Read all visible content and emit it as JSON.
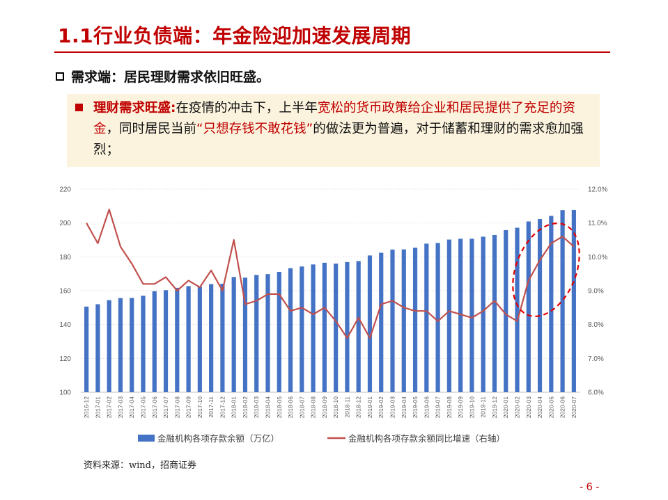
{
  "title": "1.1行业负债端：年金险迎加速发展周期",
  "subheading": "需求端：居民理财需求依旧旺盛。",
  "callout": {
    "lead": "理财需求旺盛:",
    "seg1": "在疫情的冲击下，上半年",
    "seg2_red": "宽松的货币政策给企业和居民提供了充足的资金",
    "seg3": "，同时居民当前",
    "seg4_red": "“只想存钱不敢花钱”",
    "seg5": "的做法更为普遍，对于储蓄和理财的需求愈加强烈；"
  },
  "chart_data": {
    "type": "bar+line",
    "categories": [
      "2016-12",
      "2017-01",
      "2017-02",
      "2017-03",
      "2017-04",
      "2017-05",
      "2017-06",
      "2017-07",
      "2017-08",
      "2017-09",
      "2017-10",
      "2017-11",
      "2017-12",
      "2018-01",
      "2018-02",
      "2018-03",
      "2018-04",
      "2018-05",
      "2018-06",
      "2018-07",
      "2018-08",
      "2018-09",
      "2018-10",
      "2018-11",
      "2018-12",
      "2019-01",
      "2019-02",
      "2019-03",
      "2019-04",
      "2019-05",
      "2019-06",
      "2019-07",
      "2019-08",
      "2019-09",
      "2019-10",
      "2019-11",
      "2019-12",
      "2020-01",
      "2020-02",
      "2020-03",
      "2020-04",
      "2020-05",
      "2020-06",
      "2020-07"
    ],
    "series": [
      {
        "name": "金融机构各项存款余额（万亿）",
        "axis": "left",
        "type": "bar",
        "color": "#4472c4",
        "values": [
          150.6,
          152.0,
          154.4,
          155.6,
          155.7,
          157.0,
          159.7,
          160.3,
          161.7,
          162.7,
          162.4,
          163.9,
          164.1,
          168.1,
          167.7,
          169.3,
          169.8,
          171.1,
          173.3,
          174.3,
          175.5,
          176.5,
          176.0,
          176.9,
          177.5,
          180.8,
          182.4,
          184.3,
          184.4,
          185.4,
          187.8,
          188.2,
          190.2,
          190.7,
          190.7,
          191.9,
          192.9,
          195.8,
          197.2,
          200.9,
          202.3,
          204.2,
          207.6,
          207.7
        ]
      },
      {
        "name": "金融机构各项存款余额同比增速（右轴）",
        "axis": "right",
        "type": "line",
        "color": "#c0504d",
        "values": [
          11.0,
          10.4,
          11.4,
          10.3,
          9.8,
          9.2,
          9.2,
          9.4,
          9.0,
          9.3,
          9.1,
          9.6,
          9.0,
          10.5,
          8.6,
          8.7,
          8.9,
          8.9,
          8.4,
          8.5,
          8.3,
          8.5,
          8.1,
          7.6,
          8.2,
          7.6,
          8.6,
          8.7,
          8.5,
          8.4,
          8.4,
          8.1,
          8.4,
          8.3,
          8.2,
          8.4,
          8.7,
          8.3,
          8.1,
          9.3,
          9.9,
          10.4,
          10.6,
          10.3
        ]
      }
    ],
    "y_left": {
      "min": 100,
      "max": 220,
      "ticks": [
        "100",
        "120",
        "140",
        "160",
        "180",
        "200",
        "220"
      ]
    },
    "y_right": {
      "min": 6.0,
      "max": 12.0,
      "ticks": [
        "6.0%",
        "7.0%",
        "8.0%",
        "9.0%",
        "10.0%",
        "11.0%",
        "12.0%"
      ]
    },
    "grid": true,
    "legend_position": "bottom",
    "highlight": "dashed red ellipse around 2020-03 to 2020-07"
  },
  "source": "资料来源：wind，招商证券",
  "page_number": "- 6 -"
}
